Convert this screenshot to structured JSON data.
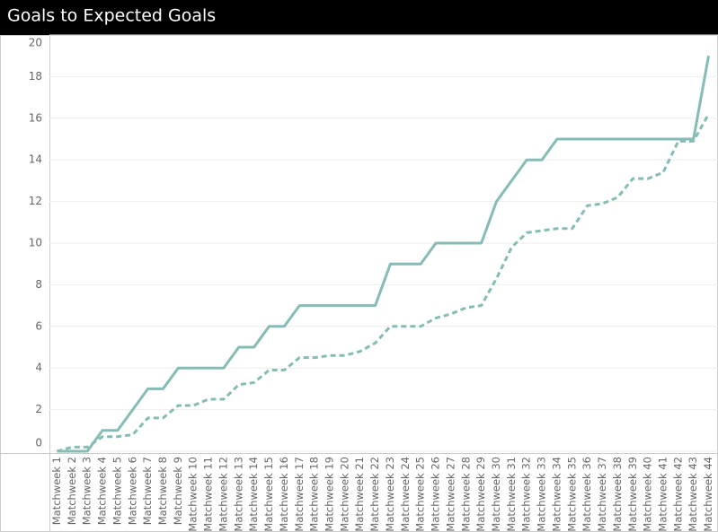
{
  "chart_data": {
    "type": "line",
    "title": "Goals to Expected Goals",
    "categories": [
      "Matchweek 1",
      "Matchweek 2",
      "Matchweek 3",
      "Matchweek 4",
      "Matchweek 5",
      "Matchweek 6",
      "Matchweek 7",
      "Matchweek 8",
      "Matchweek 9",
      "Matchweek 10",
      "Matchweek 11",
      "Matchweek 12",
      "Matchweek 13",
      "Matchweek 14",
      "Matchweek 15",
      "Matchweek 16",
      "Matchweek 17",
      "Matchweek 18",
      "Matchweek 19",
      "Matchweek 20",
      "Matchweek 21",
      "Matchweek 22",
      "Matchweek 23",
      "Matchweek 24",
      "Matchweek 25",
      "Matchweek 26",
      "Matchweek 27",
      "Matchweek 28",
      "Matchweek 29",
      "Matchweek 30",
      "Matchweek 31",
      "Matchweek 32",
      "Matchweek 33",
      "Matchweek 34",
      "Matchweek 35",
      "Matchweek 36",
      "Matchweek 37",
      "Matchweek 38",
      "Matchweek 39",
      "Matchweek 40",
      "Matchweek 41",
      "Matchweek 42",
      "Matchweek 43",
      "Matchweek 44"
    ],
    "series": [
      {
        "color": "#86bcb6",
        "dashed": false,
        "values": [
          0,
          0,
          0,
          1,
          1,
          2,
          3,
          3,
          4,
          4,
          4,
          4,
          5,
          5,
          6,
          6,
          7,
          7,
          7,
          7,
          7,
          7,
          9,
          9,
          9,
          10,
          10,
          10,
          10,
          12,
          13,
          14,
          14,
          15,
          15,
          15,
          15,
          15,
          15,
          15,
          15,
          15,
          15,
          19
        ]
      },
      {
        "color": "#86bcb6",
        "dashed": true,
        "values": [
          0,
          0.2,
          0.2,
          0.7,
          0.7,
          0.8,
          1.6,
          1.6,
          2.2,
          2.2,
          2.5,
          2.5,
          3.2,
          3.3,
          3.9,
          3.9,
          4.5,
          4.5,
          4.6,
          4.6,
          4.8,
          5.2,
          6.0,
          6.0,
          6.0,
          6.4,
          6.6,
          6.9,
          7.0,
          8.3,
          9.8,
          10.5,
          10.6,
          10.7,
          10.7,
          11.8,
          11.9,
          12.2,
          13.1,
          13.1,
          13.4,
          14.9,
          14.9,
          16.2
        ]
      }
    ],
    "ylim": [
      0,
      20
    ],
    "yticks": [
      0,
      2,
      4,
      6,
      8,
      10,
      12,
      14,
      16,
      18,
      20
    ],
    "grid": true
  }
}
